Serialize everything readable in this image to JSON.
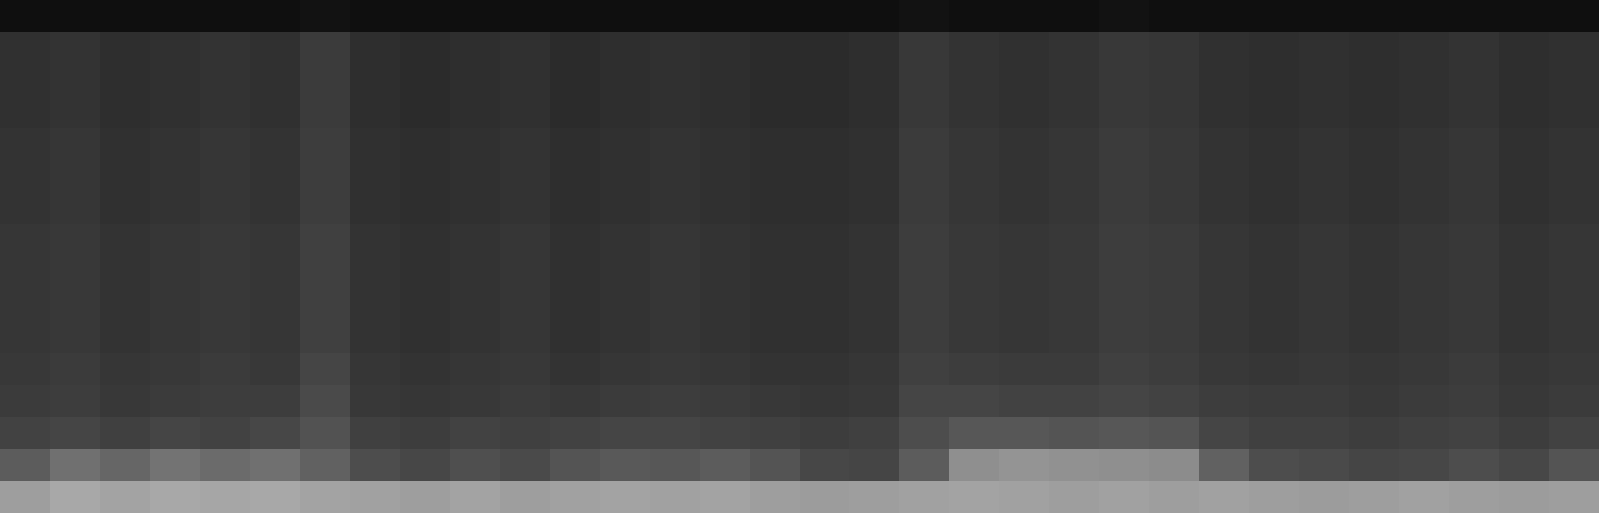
{
  "chart_data": {
    "type": "heatmap",
    "tick_labels": false,
    "zlim": [
      0,
      1
    ],
    "cells": [
      [
        0.06,
        0.06,
        0.06,
        0.06,
        0.06,
        0.06,
        0.07,
        0.06,
        0.06,
        0.06,
        0.06,
        0.06,
        0.06,
        0.06,
        0.06,
        0.06,
        0.06,
        0.06,
        0.07,
        0.06,
        0.06,
        0.06,
        0.07,
        0.06,
        0.06,
        0.06,
        0.06,
        0.06,
        0.06,
        0.06,
        0.06,
        0.06
      ],
      [
        0.19,
        0.2,
        0.18,
        0.19,
        0.2,
        0.19,
        0.23,
        0.18,
        0.17,
        0.18,
        0.19,
        0.17,
        0.18,
        0.19,
        0.18,
        0.17,
        0.17,
        0.18,
        0.22,
        0.2,
        0.19,
        0.2,
        0.22,
        0.21,
        0.19,
        0.18,
        0.19,
        0.18,
        0.19,
        0.2,
        0.18,
        0.19
      ],
      [
        0.19,
        0.2,
        0.18,
        0.19,
        0.2,
        0.19,
        0.23,
        0.18,
        0.17,
        0.18,
        0.19,
        0.17,
        0.18,
        0.19,
        0.18,
        0.17,
        0.17,
        0.18,
        0.22,
        0.2,
        0.19,
        0.2,
        0.22,
        0.21,
        0.19,
        0.18,
        0.19,
        0.18,
        0.19,
        0.2,
        0.18,
        0.19
      ],
      [
        0.19,
        0.2,
        0.18,
        0.19,
        0.2,
        0.19,
        0.23,
        0.18,
        0.17,
        0.18,
        0.19,
        0.17,
        0.18,
        0.19,
        0.18,
        0.17,
        0.17,
        0.18,
        0.22,
        0.2,
        0.19,
        0.2,
        0.22,
        0.21,
        0.19,
        0.18,
        0.19,
        0.18,
        0.19,
        0.2,
        0.18,
        0.19
      ],
      [
        0.2,
        0.21,
        0.19,
        0.2,
        0.21,
        0.2,
        0.24,
        0.19,
        0.18,
        0.19,
        0.2,
        0.18,
        0.19,
        0.2,
        0.19,
        0.18,
        0.18,
        0.19,
        0.23,
        0.21,
        0.2,
        0.21,
        0.23,
        0.22,
        0.2,
        0.19,
        0.2,
        0.19,
        0.2,
        0.21,
        0.19,
        0.2
      ],
      [
        0.2,
        0.21,
        0.19,
        0.2,
        0.21,
        0.2,
        0.24,
        0.19,
        0.18,
        0.19,
        0.2,
        0.18,
        0.19,
        0.2,
        0.19,
        0.18,
        0.18,
        0.19,
        0.23,
        0.21,
        0.2,
        0.21,
        0.23,
        0.22,
        0.2,
        0.19,
        0.2,
        0.19,
        0.2,
        0.21,
        0.19,
        0.2
      ],
      [
        0.2,
        0.21,
        0.19,
        0.2,
        0.21,
        0.2,
        0.24,
        0.19,
        0.18,
        0.19,
        0.2,
        0.18,
        0.19,
        0.2,
        0.19,
        0.18,
        0.18,
        0.19,
        0.23,
        0.21,
        0.2,
        0.21,
        0.23,
        0.22,
        0.2,
        0.19,
        0.2,
        0.19,
        0.2,
        0.21,
        0.19,
        0.2
      ],
      [
        0.21,
        0.22,
        0.2,
        0.21,
        0.22,
        0.21,
        0.25,
        0.2,
        0.19,
        0.2,
        0.21,
        0.19,
        0.2,
        0.21,
        0.2,
        0.19,
        0.19,
        0.2,
        0.24,
        0.22,
        0.21,
        0.22,
        0.24,
        0.23,
        0.21,
        0.2,
        0.21,
        0.2,
        0.21,
        0.22,
        0.2,
        0.21
      ],
      [
        0.21,
        0.22,
        0.2,
        0.21,
        0.22,
        0.21,
        0.25,
        0.2,
        0.19,
        0.2,
        0.21,
        0.19,
        0.2,
        0.21,
        0.2,
        0.19,
        0.19,
        0.2,
        0.24,
        0.22,
        0.21,
        0.22,
        0.24,
        0.23,
        0.21,
        0.2,
        0.21,
        0.2,
        0.21,
        0.22,
        0.2,
        0.21
      ],
      [
        0.21,
        0.22,
        0.2,
        0.21,
        0.22,
        0.21,
        0.25,
        0.2,
        0.19,
        0.2,
        0.21,
        0.19,
        0.2,
        0.21,
        0.2,
        0.19,
        0.19,
        0.2,
        0.24,
        0.22,
        0.21,
        0.22,
        0.24,
        0.23,
        0.21,
        0.2,
        0.21,
        0.2,
        0.21,
        0.22,
        0.2,
        0.21
      ],
      [
        0.21,
        0.22,
        0.2,
        0.21,
        0.22,
        0.21,
        0.25,
        0.2,
        0.19,
        0.2,
        0.21,
        0.19,
        0.2,
        0.21,
        0.2,
        0.19,
        0.19,
        0.2,
        0.24,
        0.22,
        0.21,
        0.22,
        0.24,
        0.23,
        0.21,
        0.2,
        0.21,
        0.2,
        0.21,
        0.22,
        0.2,
        0.21
      ],
      [
        0.22,
        0.23,
        0.21,
        0.22,
        0.23,
        0.22,
        0.27,
        0.21,
        0.2,
        0.21,
        0.22,
        0.2,
        0.21,
        0.22,
        0.21,
        0.2,
        0.2,
        0.21,
        0.25,
        0.24,
        0.23,
        0.23,
        0.25,
        0.24,
        0.22,
        0.21,
        0.22,
        0.21,
        0.22,
        0.23,
        0.21,
        0.22
      ],
      [
        0.23,
        0.24,
        0.22,
        0.23,
        0.24,
        0.24,
        0.29,
        0.22,
        0.21,
        0.22,
        0.23,
        0.22,
        0.23,
        0.24,
        0.23,
        0.22,
        0.21,
        0.22,
        0.27,
        0.27,
        0.26,
        0.26,
        0.27,
        0.26,
        0.24,
        0.23,
        0.23,
        0.22,
        0.23,
        0.24,
        0.22,
        0.23
      ],
      [
        0.26,
        0.27,
        0.25,
        0.27,
        0.26,
        0.28,
        0.32,
        0.25,
        0.24,
        0.26,
        0.25,
        0.26,
        0.27,
        0.27,
        0.26,
        0.25,
        0.24,
        0.25,
        0.3,
        0.34,
        0.34,
        0.33,
        0.34,
        0.33,
        0.27,
        0.25,
        0.25,
        0.24,
        0.25,
        0.26,
        0.24,
        0.26
      ],
      [
        0.36,
        0.44,
        0.4,
        0.45,
        0.42,
        0.44,
        0.38,
        0.3,
        0.28,
        0.31,
        0.29,
        0.33,
        0.35,
        0.34,
        0.36,
        0.33,
        0.28,
        0.27,
        0.36,
        0.56,
        0.58,
        0.57,
        0.56,
        0.55,
        0.38,
        0.3,
        0.29,
        0.27,
        0.28,
        0.3,
        0.28,
        0.33
      ],
      [
        0.62,
        0.66,
        0.64,
        0.66,
        0.65,
        0.66,
        0.64,
        0.63,
        0.62,
        0.64,
        0.62,
        0.63,
        0.64,
        0.63,
        0.64,
        0.62,
        0.61,
        0.62,
        0.63,
        0.64,
        0.63,
        0.62,
        0.63,
        0.62,
        0.63,
        0.62,
        0.61,
        0.62,
        0.63,
        0.62,
        0.61,
        0.62
      ]
    ]
  }
}
